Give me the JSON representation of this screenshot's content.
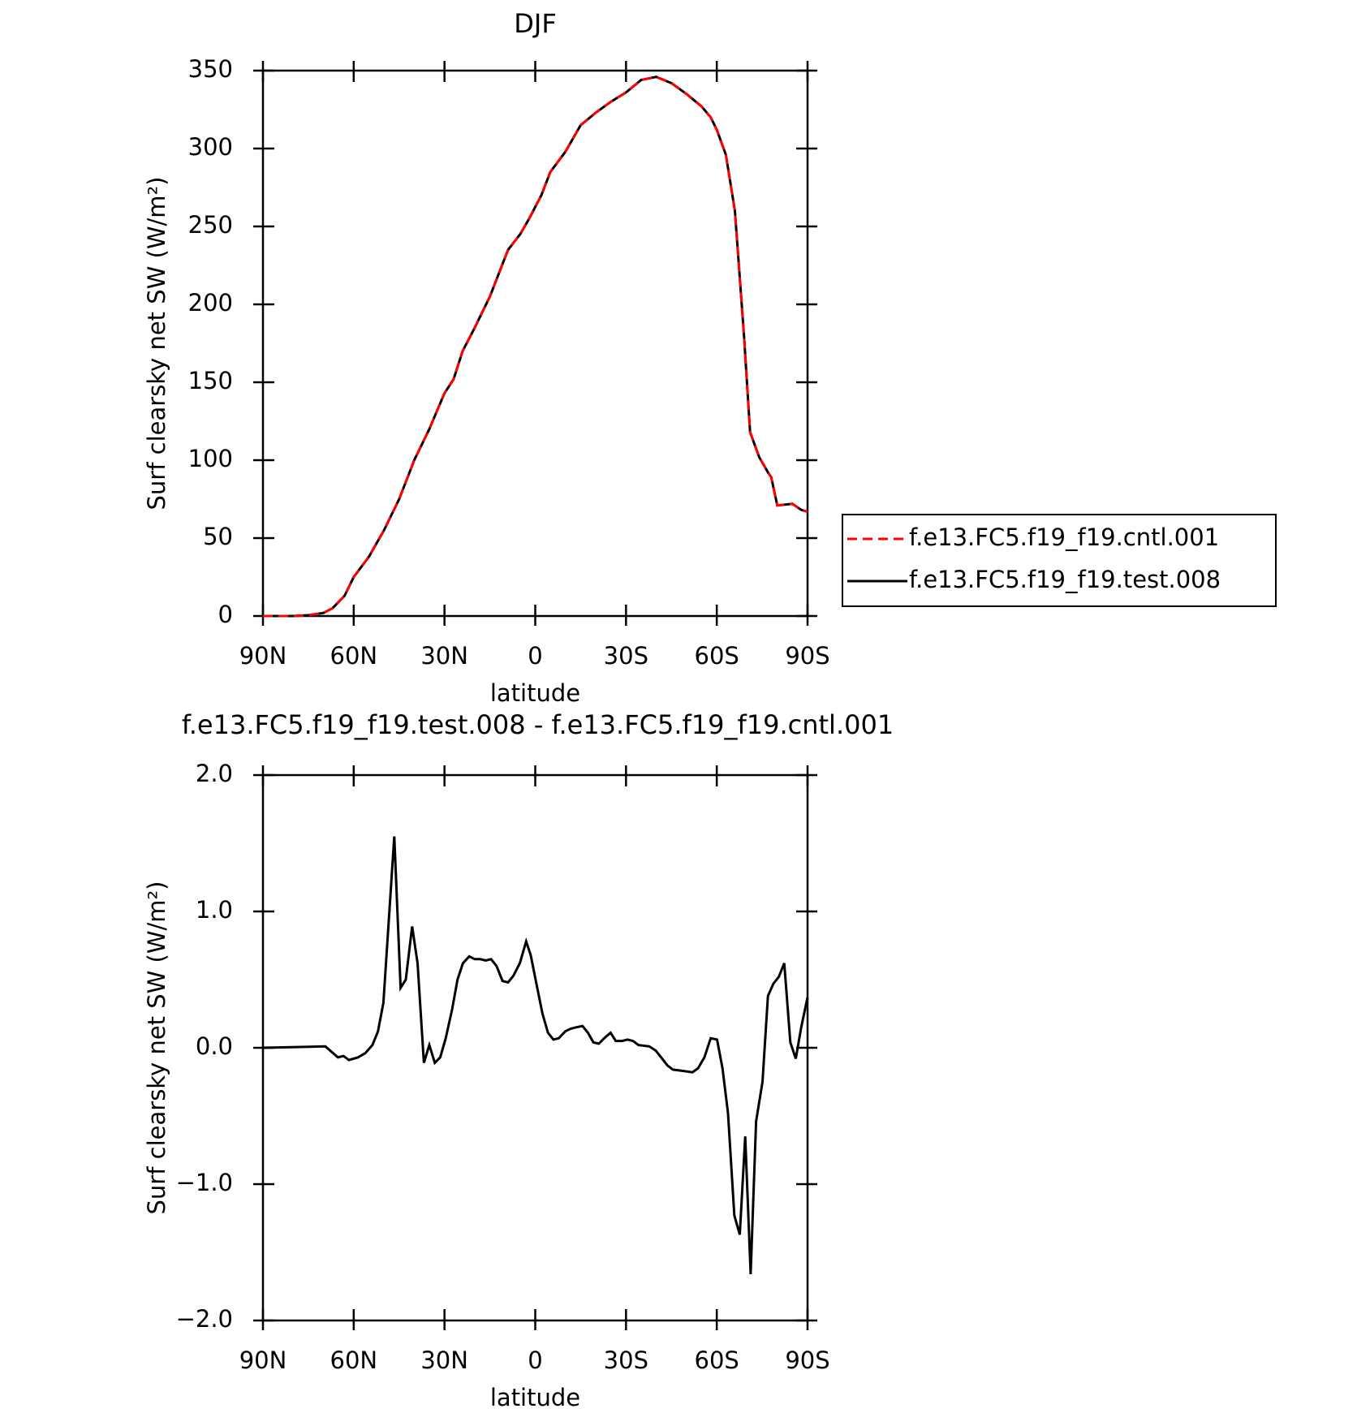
{
  "chart_data": [
    {
      "type": "line",
      "title": "DJF",
      "x_label": "latitude",
      "y_label": "Surf clearsky net SW (W/m²)",
      "xlim": [
        90,
        -90
      ],
      "xticks": [
        {
          "value": 90,
          "label": "90N"
        },
        {
          "value": 60,
          "label": "60N"
        },
        {
          "value": 30,
          "label": "30N"
        },
        0,
        {
          "value": -30,
          "label": "30S"
        },
        {
          "value": -60,
          "label": "60S"
        },
        {
          "value": -90,
          "label": "90S"
        }
      ],
      "ylim": [
        0,
        350
      ],
      "yticks": [
        0,
        50,
        100,
        150,
        200,
        250,
        300,
        350
      ],
      "legend": "outside-right",
      "x": [
        90,
        80,
        75,
        70,
        67,
        63,
        60,
        55,
        50,
        45,
        40,
        35,
        30,
        27,
        24,
        20,
        15,
        12,
        9,
        5,
        2,
        -2,
        -5,
        -10,
        -15,
        -20,
        -25,
        -30,
        -35,
        -40,
        -45,
        -50,
        -55,
        -58,
        -60,
        -63,
        -66,
        -69,
        -71,
        -74,
        -77,
        -78,
        -80,
        -85,
        -88,
        -90
      ],
      "series": [
        {
          "name": "f.e13.FC5.f19_f19.cntl.001",
          "color": "#ff0000",
          "dash": true,
          "values": [
            0,
            0,
            0.5,
            2,
            5,
            13,
            25,
            38,
            55,
            75,
            100,
            120,
            143,
            152,
            170,
            185,
            205,
            220,
            235,
            245,
            255,
            270,
            285,
            298,
            315,
            323,
            330,
            336,
            344,
            346,
            342,
            335,
            327,
            320,
            312,
            296,
            260,
            180,
            118,
            102,
            92,
            89,
            71,
            72,
            68,
            67
          ]
        },
        {
          "name": "f.e13.FC5.f19_f19.test.008",
          "color": "#000000",
          "dash": false,
          "values": [
            0,
            0,
            0.5,
            2,
            5,
            13,
            25,
            38,
            55,
            75,
            100,
            120,
            143,
            152,
            170,
            185,
            205,
            220,
            235,
            245,
            255,
            270,
            285,
            298,
            315,
            323,
            330,
            336,
            344,
            346,
            342,
            335,
            327,
            320,
            312,
            296,
            260,
            180,
            118,
            102,
            92,
            89,
            71,
            72,
            68,
            67
          ]
        }
      ]
    },
    {
      "type": "line",
      "title": "f.e13.FC5.f19_f19.test.008 - f.e13.FC5.f19_f19.cntl.001",
      "x_label": "latitude",
      "y_label": "Surf clearsky net SW (W/m²)",
      "xlim": [
        90,
        -90
      ],
      "xticks": [
        {
          "value": 90,
          "label": "90N"
        },
        {
          "value": 60,
          "label": "60N"
        },
        {
          "value": 30,
          "label": "30N"
        },
        0,
        {
          "value": -30,
          "label": "30S"
        },
        {
          "value": -60,
          "label": "60S"
        },
        {
          "value": -90,
          "label": "90S"
        }
      ],
      "ylim": [
        -2,
        2
      ],
      "yticks": [
        {
          "value": -2,
          "label": "−2.0"
        },
        {
          "value": -1,
          "label": "−1.0"
        },
        {
          "value": 0,
          "label": "0.0"
        },
        {
          "value": 1,
          "label": "1.0"
        },
        {
          "value": 2,
          "label": "2.0"
        }
      ],
      "x": [
        90,
        69.4,
        65.2,
        63.4,
        61.6,
        58.6,
        56.2,
        53.8,
        52,
        50.2,
        46.6,
        44.5,
        42.8,
        40.7,
        38.9,
        36.8,
        35,
        33.2,
        31.4,
        29.6,
        27.5,
        25.7,
        23.9,
        21.8,
        20,
        18.2,
        16.4,
        14.6,
        12.8,
        10.8,
        9,
        7.2,
        5.1,
        3,
        1.5,
        -0.3,
        -2.4,
        -4.2,
        -6,
        -7.8,
        -9.9,
        -11.7,
        -13.5,
        -15.6,
        -17.4,
        -19.2,
        -21,
        -22.8,
        -24.9,
        -26.6,
        -28.7,
        -30.5,
        -32.3,
        -34.1,
        -37.7,
        -39.8,
        -41.6,
        -43.7,
        -45.5,
        -49.1,
        -52,
        -53.8,
        -55.9,
        -58,
        -60.1,
        -61.9,
        -63.7,
        -65.8,
        -67.6,
        -69.4,
        -71.2,
        -73,
        -75.1,
        -76.9,
        -78.7,
        -80.5,
        -82.3,
        -84.3,
        -86.1,
        -87.9,
        -90
      ],
      "series": [
        {
          "color": "#000000",
          "dash": false,
          "values": [
            0,
            0.01,
            -0.07,
            -0.06,
            -0.09,
            -0.07,
            -0.04,
            0.02,
            0.12,
            0.33,
            1.55,
            0.44,
            0.5,
            0.89,
            0.62,
            -0.11,
            0.02,
            -0.11,
            -0.07,
            0.07,
            0.28,
            0.5,
            0.62,
            0.67,
            0.65,
            0.65,
            0.64,
            0.65,
            0.6,
            0.49,
            0.48,
            0.53,
            0.62,
            0.78,
            0.68,
            0.48,
            0.25,
            0.11,
            0.06,
            0.07,
            0.12,
            0.14,
            0.15,
            0.16,
            0.11,
            0.04,
            0.03,
            0.07,
            0.11,
            0.05,
            0.05,
            0.06,
            0.05,
            0.02,
            0.01,
            -0.02,
            -0.07,
            -0.13,
            -0.16,
            -0.17,
            -0.18,
            -0.15,
            -0.07,
            0.07,
            0.06,
            -0.15,
            -0.48,
            -1.23,
            -1.37,
            -0.65,
            -1.66,
            -0.54,
            -0.25,
            0.38,
            0.47,
            0.52,
            0.62,
            0.04,
            -0.08,
            0.15,
            0.37
          ]
        }
      ]
    }
  ]
}
